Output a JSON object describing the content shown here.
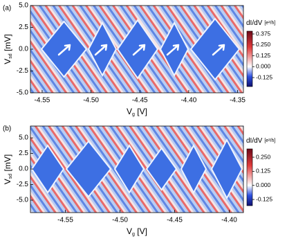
{
  "chart_data": [
    {
      "type": "heatmap",
      "panel_label": "(a)",
      "x_label": [
        "V",
        "g",
        " [V]"
      ],
      "y_label": [
        "V",
        "sd",
        " [mV]"
      ],
      "colorbar_label": [
        "dI/dV",
        "[e²/h]"
      ],
      "xlim": [
        -4.562,
        -4.344
      ],
      "xticks": [
        -4.55,
        {
          "value": -4.5,
          "label": "-4.50"
        },
        -4.45,
        {
          "value": -4.4,
          "label": "-4.40"
        },
        -4.35
      ],
      "ylim": [
        -5.0,
        5.0
      ],
      "yticks": [
        {
          "value": 5,
          "label": "5.0"
        },
        2.5,
        {
          "value": 0,
          "label": "0.0"
        },
        -2.5,
        {
          "value": -5,
          "label": "-5.0"
        }
      ],
      "clim": [
        -0.228,
        0.407
      ],
      "cticks": [
        0.375,
        {
          "value": 0.25,
          "label": "0.250"
        },
        0.125,
        {
          "value": 0,
          "label": "0.000"
        },
        -0.125
      ]
    },
    {
      "type": "heatmap",
      "panel_label": "(b)",
      "x_label": [
        "V",
        "g",
        " [V]"
      ],
      "y_label": [
        "V",
        "sd",
        " [mV]"
      ],
      "colorbar_label": [
        "dI/dV",
        "[e²/h]"
      ],
      "xlim": [
        -4.582,
        -4.387
      ],
      "xticks": [
        -4.55,
        {
          "value": -4.5,
          "label": "-4.50"
        },
        -4.45,
        {
          "value": -4.4,
          "label": "-4.40"
        }
      ],
      "ylim": [
        -7.0,
        6.9
      ],
      "yticks": [
        {
          "value": 5,
          "label": "5.0"
        },
        2.5,
        {
          "value": 0,
          "label": "0.0"
        },
        -2.5,
        {
          "value": -5,
          "label": "-5.0"
        }
      ],
      "clim": [
        -0.18,
        0.324
      ],
      "cticks": [
        {
          "value": 0.25,
          "label": "0.250"
        },
        0.125,
        {
          "value": 0,
          "label": "0.000"
        },
        -0.125
      ]
    }
  ]
}
